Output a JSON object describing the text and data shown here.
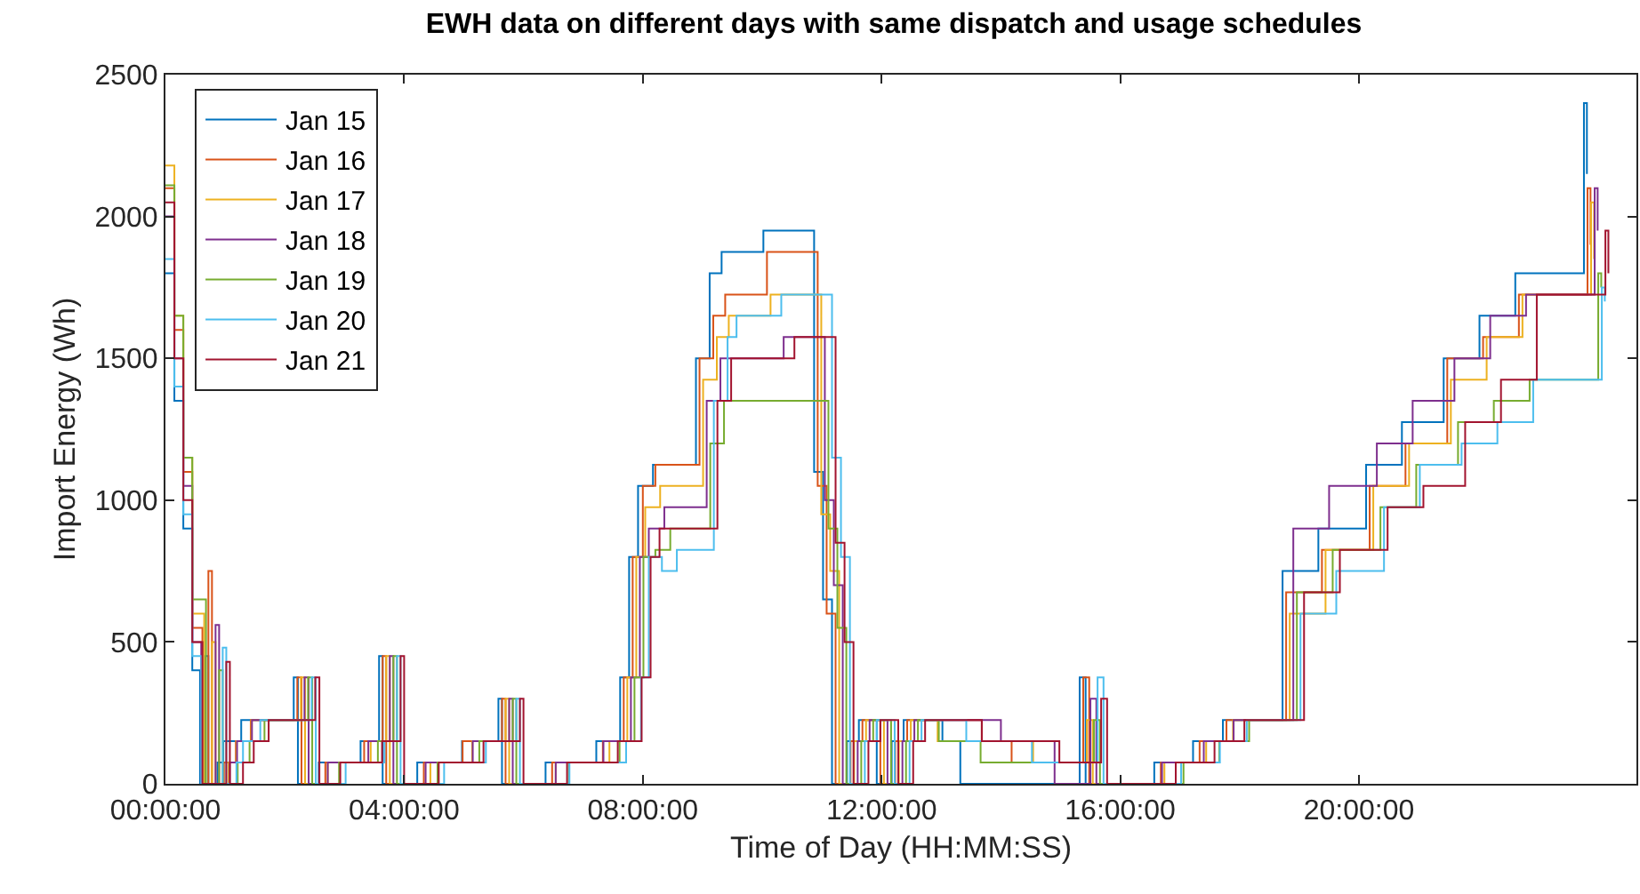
{
  "chart_data": {
    "type": "step",
    "title": "EWH data on different days with same dispatch and usage schedules",
    "xlabel": "Time of Day (HH:MM:SS)",
    "ylabel": "Import Energy (Wh)",
    "xlim": [
      0,
      24.65
    ],
    "xticks": [
      {
        "value": 0,
        "label": "00:00:00"
      },
      {
        "value": 4,
        "label": "04:00:00"
      },
      {
        "value": 8,
        "label": "08:00:00"
      },
      {
        "value": 12,
        "label": "12:00:00"
      },
      {
        "value": 16,
        "label": "16:00:00"
      },
      {
        "value": 20,
        "label": "20:00:00"
      }
    ],
    "ylim": [
      0,
      2500
    ],
    "yticks": [
      0,
      500,
      1000,
      1500,
      2000,
      2500
    ],
    "legend": "top left",
    "series": [
      {
        "name": "Jan 15",
        "color": "#0072bd",
        "x": [
          0,
          0.15,
          0.3,
          0.45,
          0.58,
          0.66,
          0.72,
          0.87,
          0.97,
          1.27,
          2.15,
          2.22,
          2.57,
          3.27,
          3.58,
          3.64,
          4.22,
          4.97,
          5.58,
          5.64,
          6.37,
          7.22,
          7.62,
          7.77,
          7.92,
          8.17,
          8.89,
          9.12,
          9.32,
          10.02,
          10.87,
          11.02,
          11.17,
          11.42,
          11.62,
          11.92,
          12.17,
          12.37,
          13.02,
          13.32,
          15.32,
          15.42,
          16.57,
          17.22,
          17.72,
          18.72,
          19.32,
          20.12,
          20.72,
          21.42,
          22.02,
          22.62,
          23.77,
          23.82
        ],
        "values": [
          1800,
          1350,
          900,
          400,
          0,
          450,
          0,
          75,
          150,
          225,
          375,
          0,
          75,
          150,
          450,
          0,
          75,
          150,
          300,
          0,
          75,
          150,
          375,
          800,
          1050,
          1125,
          1500,
          1800,
          1875,
          1950,
          1100,
          650,
          0,
          150,
          225,
          0,
          150,
          225,
          150,
          0,
          375,
          0,
          75,
          150,
          225,
          750,
          900,
          1125,
          1275,
          1500,
          1650,
          1800,
          2400,
          2150
        ]
      },
      {
        "name": "Jan 16",
        "color": "#d95319",
        "x": [
          0,
          0.15,
          0.3,
          0.45,
          0.62,
          0.72,
          0.78,
          0.98,
          1.18,
          1.43,
          2.21,
          2.28,
          2.68,
          3.33,
          3.64,
          3.7,
          4.33,
          4.98,
          5.64,
          5.7,
          6.48,
          7.33,
          7.68,
          7.83,
          8.0,
          8.21,
          8.95,
          9.18,
          9.38,
          10.08,
          10.93,
          11.08,
          11.23,
          11.48,
          11.68,
          11.98,
          12.23,
          12.43,
          13.68,
          14.18,
          15.38,
          15.48,
          16.68,
          17.33,
          17.78,
          18.78,
          19.38,
          20.18,
          20.78,
          21.48,
          22.08,
          22.68,
          23.83,
          23.88
        ],
        "values": [
          2100,
          1600,
          1100,
          550,
          0,
          750,
          0,
          75,
          150,
          225,
          375,
          0,
          75,
          150,
          450,
          0,
          75,
          150,
          300,
          0,
          75,
          150,
          375,
          800,
          1050,
          1125,
          1500,
          1650,
          1725,
          1875,
          1050,
          600,
          0,
          150,
          225,
          0,
          150,
          225,
          150,
          75,
          375,
          0,
          75,
          150,
          225,
          675,
          825,
          1050,
          1200,
          1500,
          1575,
          1725,
          2100,
          1900
        ]
      },
      {
        "name": "Jan 17",
        "color": "#edb120",
        "x": [
          0,
          0.15,
          0.3,
          0.45,
          0.65,
          0.78,
          0.84,
          1.06,
          1.19,
          1.44,
          2.27,
          2.34,
          2.72,
          3.44,
          3.7,
          3.76,
          4.44,
          5.14,
          5.7,
          5.76,
          6.54,
          7.44,
          7.74,
          7.89,
          8.04,
          8.29,
          9.01,
          9.24,
          9.44,
          10.14,
          10.99,
          11.14,
          11.29,
          11.54,
          11.74,
          12.04,
          12.29,
          12.49,
          12.94,
          14.54,
          15.44,
          15.54,
          16.74,
          17.44,
          17.89,
          18.84,
          19.44,
          20.24,
          20.84,
          21.54,
          22.14,
          22.74,
          23.89,
          23.94
        ],
        "values": [
          2180,
          1650,
          1150,
          600,
          0,
          500,
          0,
          75,
          150,
          225,
          375,
          0,
          75,
          150,
          450,
          0,
          75,
          150,
          300,
          0,
          75,
          150,
          375,
          800,
          975,
          1050,
          1425,
          1575,
          1650,
          1725,
          950,
          750,
          0,
          150,
          225,
          0,
          150,
          225,
          150,
          75,
          225,
          0,
          75,
          150,
          225,
          600,
          825,
          1050,
          1200,
          1425,
          1575,
          1725,
          2050,
          1850
        ]
      },
      {
        "name": "Jan 18",
        "color": "#7e2f8e",
        "x": [
          0,
          0.15,
          0.3,
          0.45,
          0.6,
          0.84,
          0.9,
          1.08,
          1.2,
          1.45,
          2.33,
          2.4,
          2.72,
          3.4,
          3.76,
          3.82,
          4.36,
          5.15,
          5.76,
          5.82,
          6.54,
          7.34,
          7.8,
          7.95,
          8.1,
          8.36,
          9.07,
          9.3,
          9.5,
          10.36,
          11.05,
          11.2,
          11.35,
          11.6,
          11.8,
          12.1,
          12.35,
          12.55,
          14.0,
          14.9,
          15.5,
          15.6,
          16.7,
          17.4,
          17.9,
          18.9,
          19.5,
          20.3,
          20.9,
          21.6,
          22.2,
          22.8,
          23.95,
          24.0
        ],
        "values": [
          2000,
          1500,
          1050,
          500,
          0,
          560,
          0,
          75,
          150,
          225,
          375,
          0,
          75,
          150,
          450,
          0,
          75,
          150,
          300,
          0,
          75,
          150,
          375,
          800,
          900,
          975,
          1350,
          1500,
          1500,
          1575,
          1000,
          700,
          0,
          150,
          225,
          0,
          150,
          225,
          150,
          0,
          300,
          0,
          75,
          150,
          225,
          900,
          1050,
          1200,
          1350,
          1500,
          1650,
          1725,
          2100,
          1950
        ]
      },
      {
        "name": "Jan 19",
        "color": "#77ac30",
        "x": [
          0,
          0.15,
          0.3,
          0.45,
          0.68,
          0.9,
          0.96,
          1.21,
          1.41,
          1.66,
          2.39,
          2.46,
          2.91,
          3.56,
          3.82,
          3.88,
          4.56,
          5.26,
          5.82,
          5.88,
          6.76,
          7.61,
          7.86,
          8.01,
          8.21,
          8.46,
          9.13,
          9.36,
          9.56,
          10.26,
          11.11,
          11.26,
          11.41,
          11.66,
          11.86,
          12.16,
          12.41,
          12.61,
          12.96,
          13.66,
          15.56,
          15.66,
          17.06,
          17.66,
          18.16,
          18.96,
          19.56,
          20.36,
          20.96,
          21.66,
          22.26,
          22.86,
          24.01,
          24.06
        ],
        "values": [
          2110,
          1650,
          1150,
          650,
          0,
          400,
          0,
          75,
          150,
          225,
          375,
          0,
          75,
          150,
          450,
          0,
          75,
          150,
          300,
          0,
          75,
          150,
          375,
          800,
          825,
          900,
          1200,
          1350,
          1350,
          1350,
          900,
          550,
          0,
          150,
          225,
          0,
          150,
          225,
          150,
          75,
          225,
          0,
          75,
          150,
          225,
          675,
          825,
          975,
          1125,
          1275,
          1350,
          1425,
          1800,
          1750
        ]
      },
      {
        "name": "Jan 20",
        "color": "#4dbeee",
        "x": [
          0,
          0.15,
          0.3,
          0.45,
          0.6,
          0.96,
          1.02,
          1.19,
          1.3,
          1.59,
          2.45,
          2.52,
          3.02,
          3.67,
          3.88,
          3.94,
          4.67,
          5.37,
          5.88,
          5.94,
          6.77,
          7.72,
          7.97,
          8.1,
          8.32,
          8.57,
          9.19,
          9.42,
          9.57,
          10.32,
          11.17,
          11.32,
          11.47,
          11.72,
          11.92,
          12.22,
          12.47,
          12.67,
          13.42,
          14.52,
          15.62,
          15.72,
          17.02,
          17.67,
          18.12,
          19.02,
          19.62,
          20.42,
          21.02,
          21.72,
          22.32,
          22.92,
          24.07,
          24.12
        ],
        "values": [
          1850,
          1400,
          950,
          450,
          0,
          480,
          0,
          75,
          150,
          225,
          375,
          0,
          75,
          150,
          450,
          0,
          75,
          150,
          300,
          0,
          75,
          150,
          375,
          800,
          750,
          825,
          1350,
          1575,
          1650,
          1725,
          1150,
          800,
          0,
          150,
          225,
          0,
          150,
          225,
          150,
          75,
          375,
          0,
          75,
          150,
          225,
          600,
          750,
          975,
          1125,
          1200,
          1275,
          1425,
          1750,
          1700
        ]
      },
      {
        "name": "Jan 21",
        "color": "#a2142f",
        "x": [
          0,
          0.15,
          0.3,
          0.45,
          0.62,
          1.02,
          1.08,
          1.3,
          1.48,
          1.73,
          2.51,
          2.58,
          2.93,
          3.63,
          3.94,
          4.0,
          4.58,
          5.33,
          5.94,
          6.0,
          6.73,
          7.58,
          7.98,
          8.13,
          8.28,
          8.53,
          9.25,
          9.48,
          9.68,
          10.54,
          11.23,
          11.38,
          11.53,
          11.78,
          11.98,
          12.28,
          12.53,
          12.73,
          13.68,
          14.98,
          15.68,
          15.78,
          16.93,
          17.58,
          18.08,
          19.08,
          19.68,
          20.48,
          21.08,
          21.78,
          22.38,
          22.98,
          24.13,
          24.18
        ],
        "values": [
          2050,
          1500,
          1000,
          500,
          0,
          430,
          0,
          75,
          150,
          225,
          375,
          0,
          75,
          150,
          450,
          0,
          75,
          150,
          300,
          0,
          75,
          150,
          375,
          800,
          900,
          900,
          1350,
          1500,
          1500,
          1575,
          850,
          500,
          0,
          150,
          225,
          0,
          150,
          225,
          150,
          75,
          300,
          0,
          75,
          150,
          225,
          675,
          825,
          975,
          1050,
          1275,
          1425,
          1725,
          1950,
          1800
        ]
      }
    ]
  }
}
